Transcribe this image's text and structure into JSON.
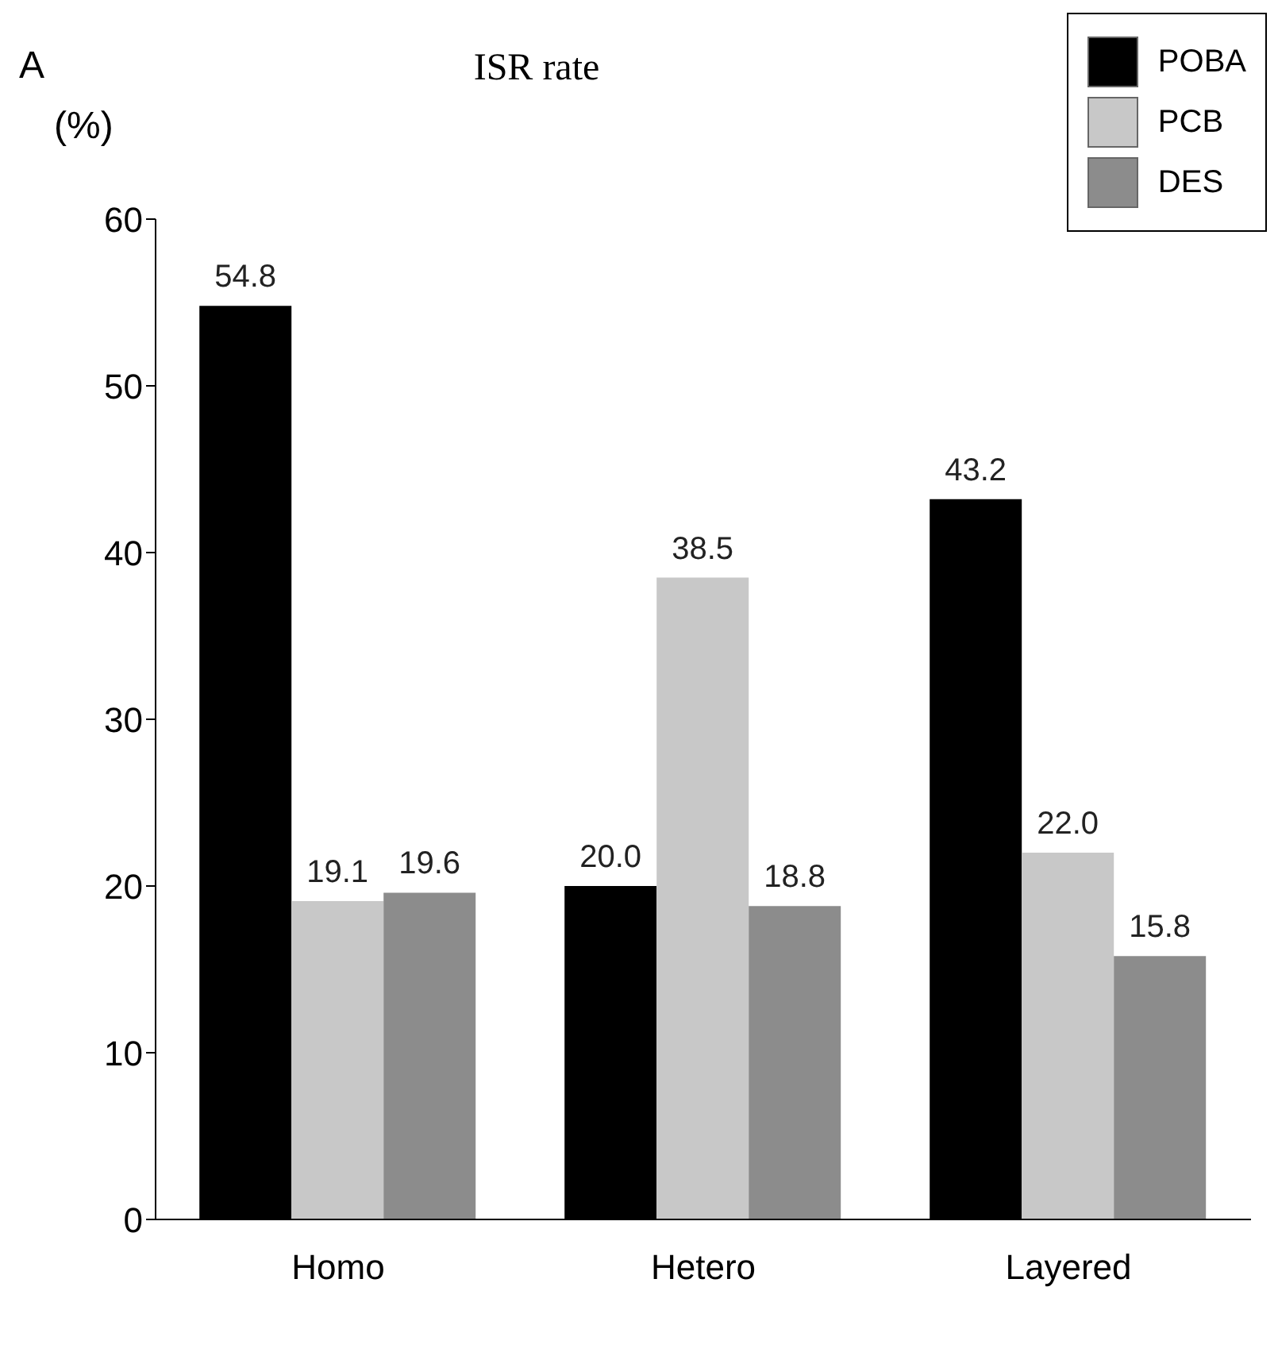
{
  "chart_data": {
    "type": "bar",
    "title": "ISR rate",
    "ylabel": "(%)",
    "annotations": [
      "A"
    ],
    "categories": [
      "Homo",
      "Hetero",
      "Layered"
    ],
    "series": [
      {
        "name": "POBA",
        "color": "#000000",
        "values": [
          54.8,
          20.0,
          43.2
        ],
        "value_labels": [
          "54.8",
          "20.0",
          "43.2"
        ]
      },
      {
        "name": "PCB",
        "color": "#c8c8c8",
        "values": [
          19.1,
          38.5,
          22.0
        ],
        "value_labels": [
          "19.1",
          "38.5",
          "22.0"
        ]
      },
      {
        "name": "DES",
        "color": "#8c8c8c",
        "values": [
          19.6,
          18.8,
          15.8
        ],
        "value_labels": [
          "19.6",
          "18.8",
          "15.8"
        ]
      }
    ],
    "ylim": [
      0,
      60
    ],
    "yticks": [
      0,
      10,
      20,
      30,
      40,
      50,
      60
    ],
    "grid": false,
    "legend": "top right"
  }
}
